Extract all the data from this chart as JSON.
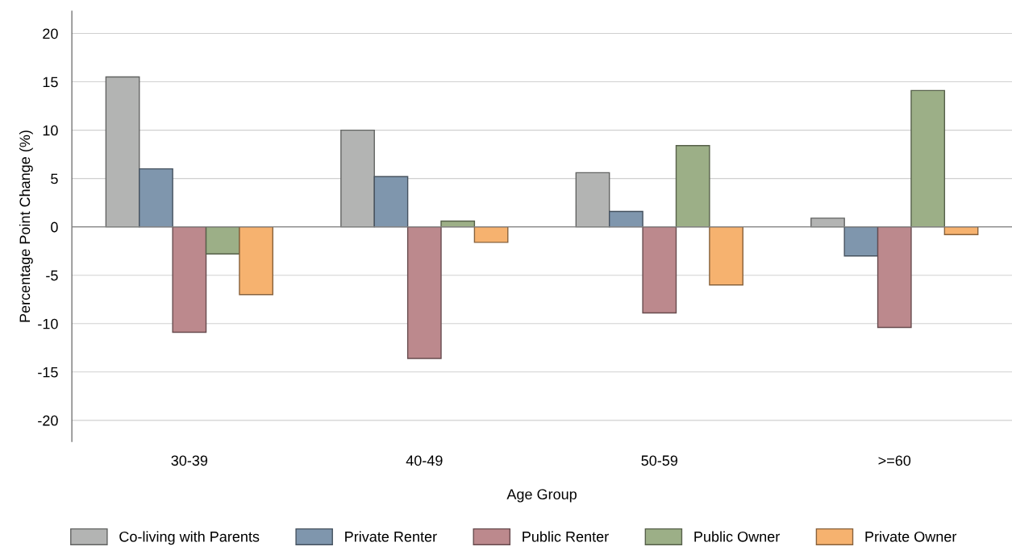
{
  "chart_data": {
    "type": "bar",
    "xlabel": "Age Group",
    "ylabel": "Percentage Point Change (%)",
    "categories": [
      "30-39",
      "40-49",
      "50-59",
      ">=60"
    ],
    "series": [
      {
        "name": "Co-living with Parents",
        "color": "#b3b4b3",
        "values": [
          15.5,
          10.0,
          5.6,
          0.9
        ]
      },
      {
        "name": "Private Renter",
        "color": "#7f96ad",
        "values": [
          6.0,
          5.2,
          1.6,
          -3.0
        ]
      },
      {
        "name": "Public Renter",
        "color": "#bc898d",
        "values": [
          -10.9,
          -13.6,
          -8.9,
          -10.4
        ]
      },
      {
        "name": "Public Owner",
        "color": "#9caf87",
        "values": [
          -2.8,
          0.6,
          8.4,
          14.1
        ]
      },
      {
        "name": "Private Owner",
        "color": "#f6b26f",
        "values": [
          -7.0,
          -1.6,
          -6.0,
          -0.8
        ]
      }
    ],
    "ylim": [
      -22.2,
      22.3
    ],
    "yticks": [
      -20,
      -15,
      -10,
      -5,
      0,
      5,
      10,
      15,
      20
    ],
    "ref_lines": [
      {
        "axis": "y",
        "value": 0,
        "color": "#808080"
      }
    ],
    "grid": "y",
    "legend": "bottom"
  }
}
